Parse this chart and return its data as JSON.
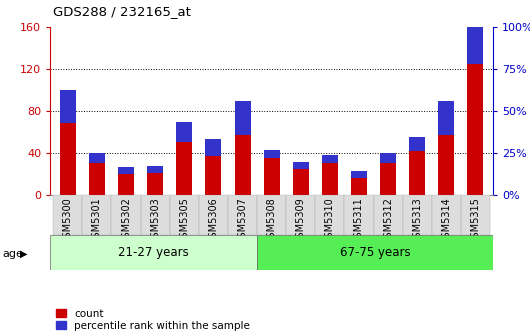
{
  "title": "GDS288 / 232165_at",
  "samples": [
    "GSM5300",
    "GSM5301",
    "GSM5302",
    "GSM5303",
    "GSM5305",
    "GSM5306",
    "GSM5307",
    "GSM5308",
    "GSM5309",
    "GSM5310",
    "GSM5311",
    "GSM5312",
    "GSM5313",
    "GSM5314",
    "GSM5315"
  ],
  "count_values": [
    68,
    30,
    20,
    21,
    50,
    37,
    57,
    35,
    25,
    30,
    16,
    30,
    42,
    57,
    125
  ],
  "percentile_values": [
    20,
    6,
    4,
    4,
    12,
    10,
    20,
    5,
    4,
    5,
    4,
    6,
    8,
    20,
    28
  ],
  "group1_label": "21-27 years",
  "group2_label": "67-75 years",
  "group1_count": 7,
  "group2_count": 8,
  "ylim_left": [
    0,
    160
  ],
  "ylim_right": [
    0,
    100
  ],
  "yticks_left": [
    0,
    40,
    80,
    120,
    160
  ],
  "yticks_right": [
    0,
    25,
    50,
    75,
    100
  ],
  "ytick_labels_left": [
    "0",
    "40",
    "80",
    "120",
    "160"
  ],
  "ytick_labels_right": [
    "0%",
    "25%",
    "50%",
    "75%",
    "100%"
  ],
  "bar_color_count": "#cc0000",
  "bar_color_pct": "#3333cc",
  "group1_bg": "#ccffcc",
  "group2_bg": "#55ee55",
  "plot_bg": "#ffffff",
  "grid_color": "#000000",
  "bar_width": 0.55,
  "left_tick_color": "#cc0000",
  "right_tick_color": "#0000cc",
  "spine_color": "#888888"
}
